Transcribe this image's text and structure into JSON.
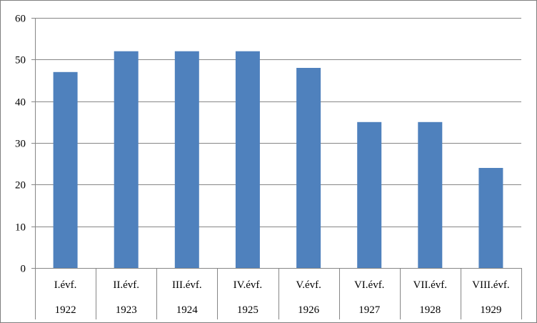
{
  "chart_data": {
    "type": "bar",
    "categories": [
      [
        "I.évf.",
        "1922"
      ],
      [
        "II.évf.",
        "1923"
      ],
      [
        "III.évf.",
        "1924"
      ],
      [
        "IV.évf.",
        "1925"
      ],
      [
        "V.évf.",
        "1926"
      ],
      [
        "VI.évf.",
        "1927"
      ],
      [
        "VII.évf.",
        "1928"
      ],
      [
        "VIII.évf.",
        "1929"
      ]
    ],
    "values": [
      47,
      52,
      52,
      52,
      48,
      35,
      35,
      24
    ],
    "ylim": [
      0,
      60
    ],
    "yticks": [
      0,
      10,
      20,
      30,
      40,
      50,
      60
    ],
    "grid": true,
    "legend": "none",
    "colors": {
      "bar": "#4f81bd",
      "grid": "#868686",
      "text": "#000000"
    }
  }
}
